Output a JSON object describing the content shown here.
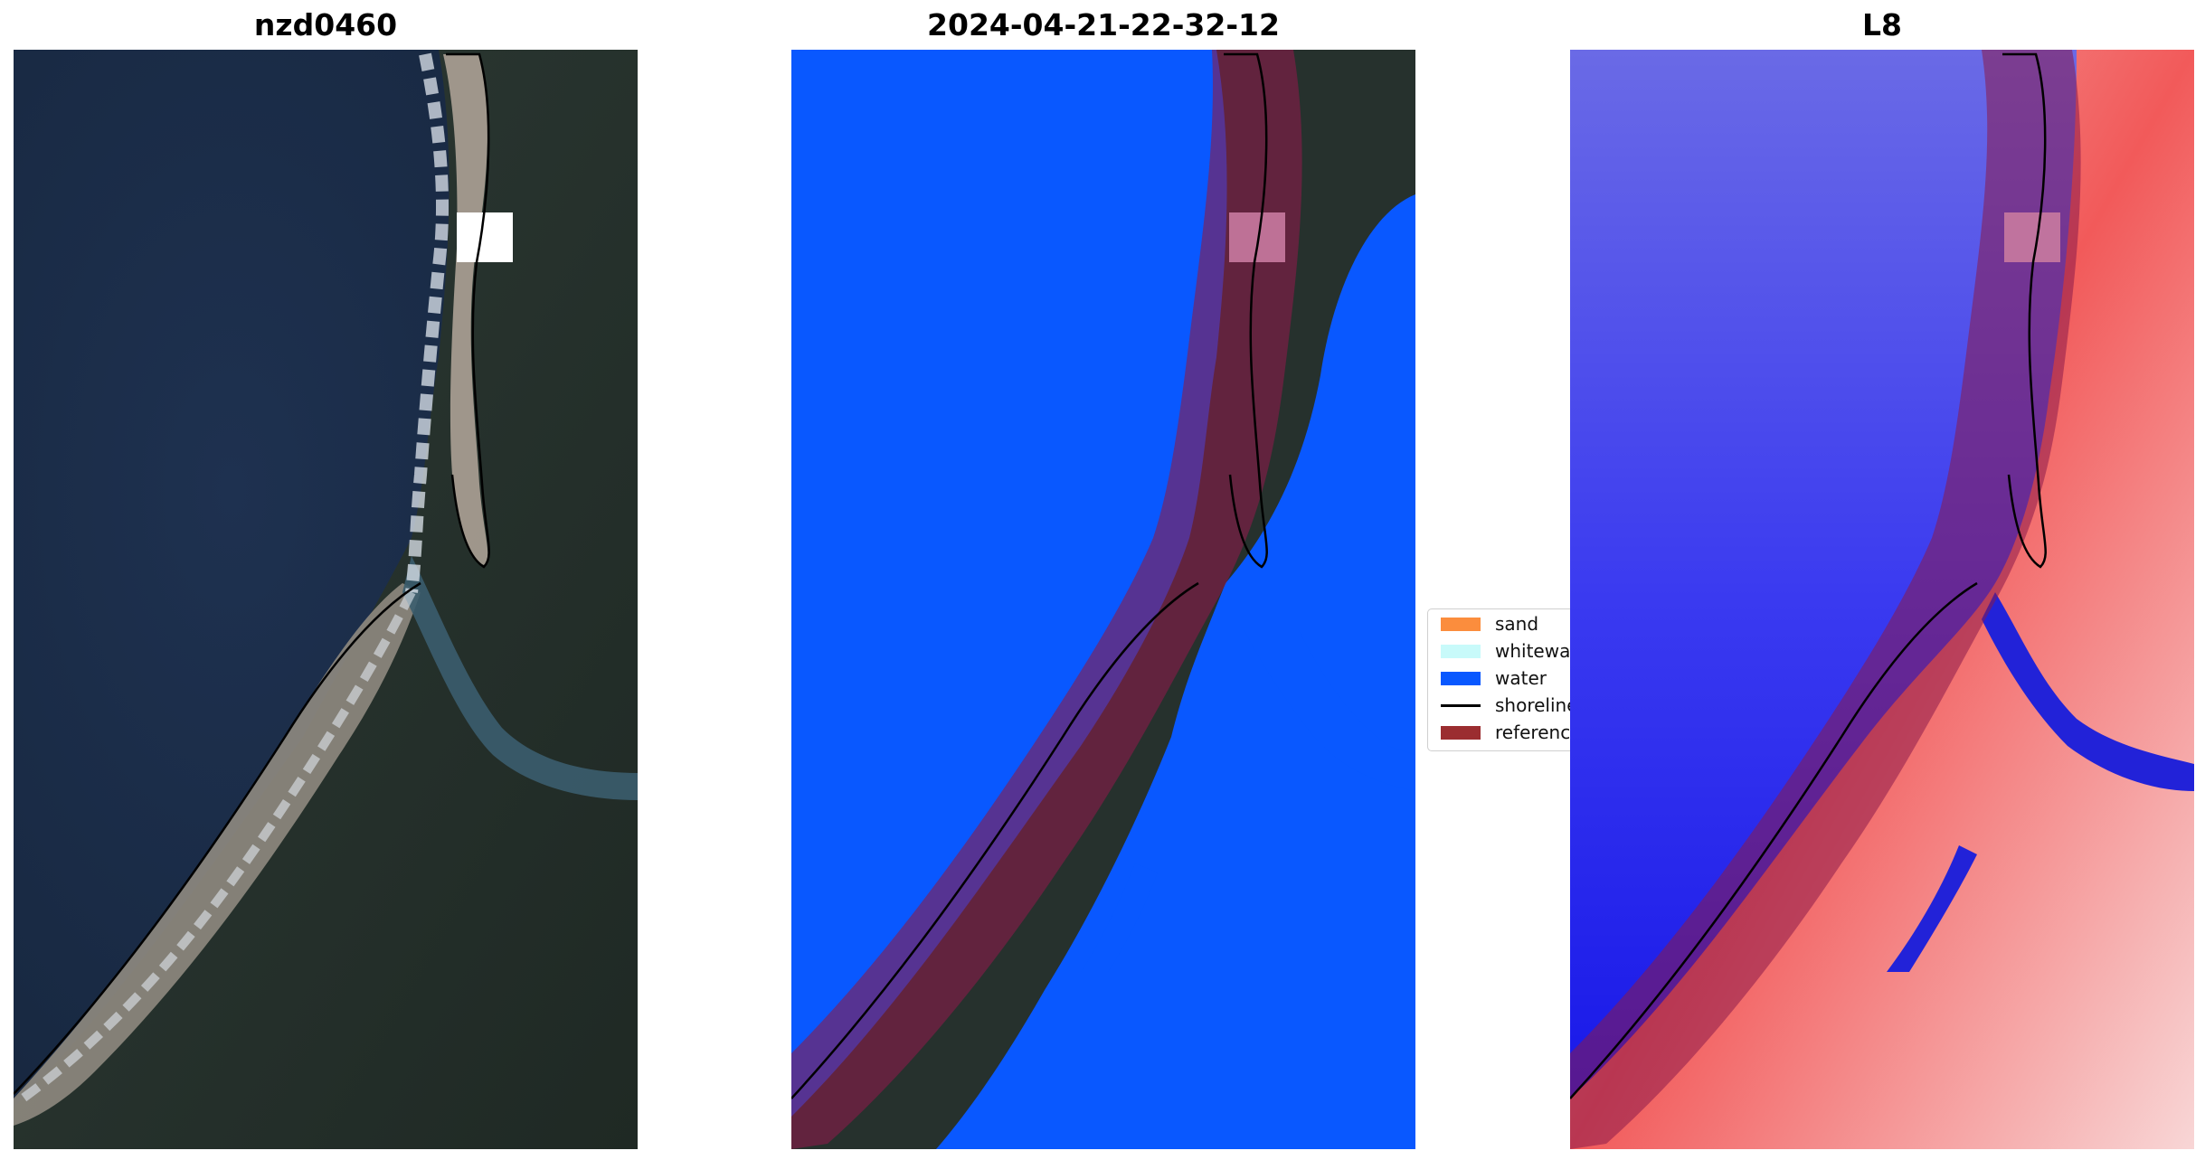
{
  "panels": [
    {
      "title": "nzd0460"
    },
    {
      "title": "2024-04-21-22-32-12"
    },
    {
      "title": "L8"
    }
  ],
  "legend": {
    "items": [
      {
        "label": "sand",
        "color": "#fb8d3d",
        "kind": "patch"
      },
      {
        "label": "whitewater",
        "color": "#c8fafa",
        "kind": "patch"
      },
      {
        "label": "water",
        "color": "#0958ff",
        "kind": "patch"
      },
      {
        "label": "shoreline",
        "color": "#000000",
        "kind": "line"
      },
      {
        "label": "reference",
        "color": "#9b2d30",
        "kind": "patch"
      }
    ]
  },
  "colors": {
    "ocean": "#1b2c45",
    "land": "#26312d",
    "sand_beach": "#9c958a",
    "water_class": "#0958ff",
    "buffer_overlay": "#8b1a4a",
    "index_low": "#1a1ae6",
    "index_high": "#f03535"
  }
}
